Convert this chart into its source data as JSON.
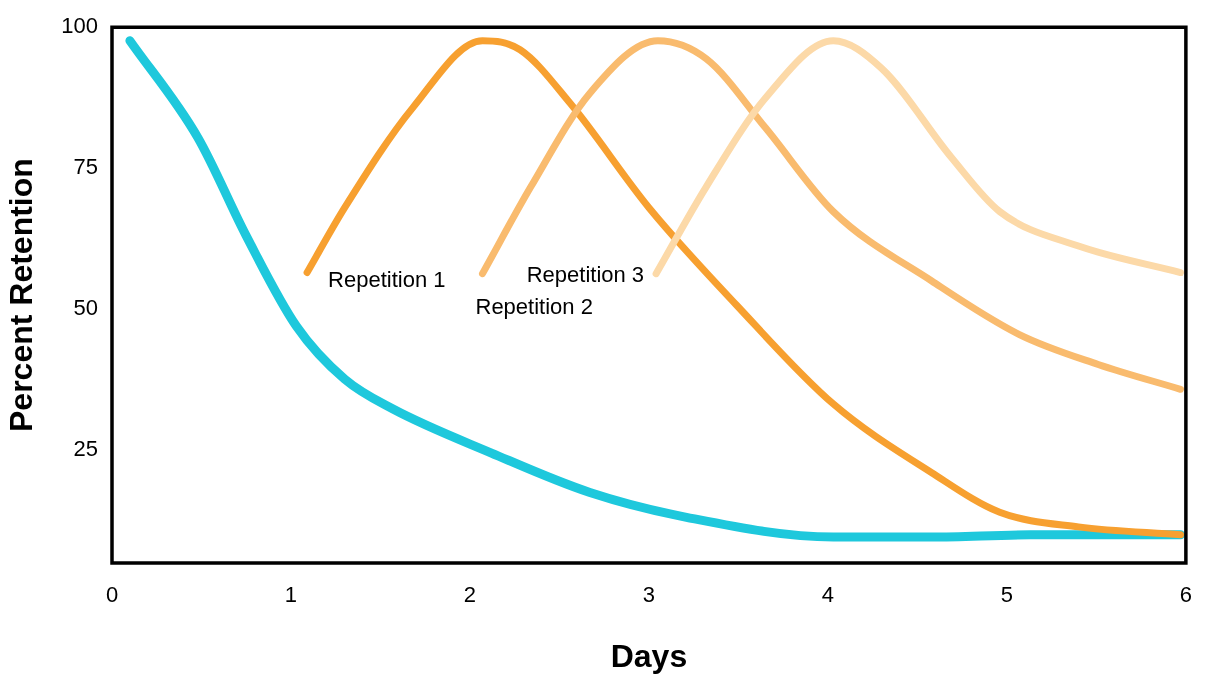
{
  "chart_data": {
    "type": "line",
    "xlabel": "Days",
    "ylabel": "Percent Retention",
    "xlim": [
      0,
      6
    ],
    "xticks": [
      0,
      1,
      2,
      3,
      4,
      5,
      6
    ],
    "ylim": [
      5,
      100
    ],
    "yticks": [
      25,
      50,
      75,
      100
    ],
    "grid": false,
    "legend": false,
    "marker": "none",
    "line_style": "solid",
    "series": [
      {
        "color": "#1ec8dc",
        "x": [
          0.1,
          0.48,
          0.75,
          1.03,
          1.3,
          1.57,
          2.12,
          2.67,
          3.21,
          4.03,
          4.58,
          5.13,
          5.97
        ],
        "values": [
          97.6,
          80.4,
          63,
          47,
          37.6,
          32.3,
          24.5,
          17.5,
          13.1,
          9.6,
          9.6,
          10,
          10
        ]
      },
      {
        "name": "Repetition 1",
        "color": "#f7a030",
        "x": [
          1.09,
          1.3,
          1.68,
          2.07,
          2.28,
          2.56,
          3.0,
          3.49,
          4.03,
          4.58,
          4.96,
          5.4,
          5.97
        ],
        "values": [
          56.5,
          68,
          85.7,
          97.6,
          96,
          86.5,
          68,
          50.7,
          33.2,
          21,
          14,
          11.4,
          10
        ]
      },
      {
        "name": "Repetition 2",
        "color": "#f9bb6e",
        "x": [
          2.07,
          2.34,
          2.67,
          3.05,
          3.32,
          3.65,
          4.03,
          4.58,
          5.07,
          5.51,
          5.97
        ],
        "values": [
          56.3,
          71.7,
          88.3,
          97.6,
          94.4,
          82.2,
          67.3,
          55,
          45.5,
          40.2,
          35.8
        ]
      },
      {
        "name": "Repetition 3",
        "color": "#fcd9a8",
        "x": [
          3.04,
          3.32,
          3.65,
          4.03,
          4.3,
          4.69,
          4.96,
          5.4,
          5.97
        ],
        "values": [
          56.3,
          71.7,
          87.4,
          97.6,
          92.7,
          76.9,
          67.3,
          61.2,
          56.5
        ]
      }
    ]
  }
}
